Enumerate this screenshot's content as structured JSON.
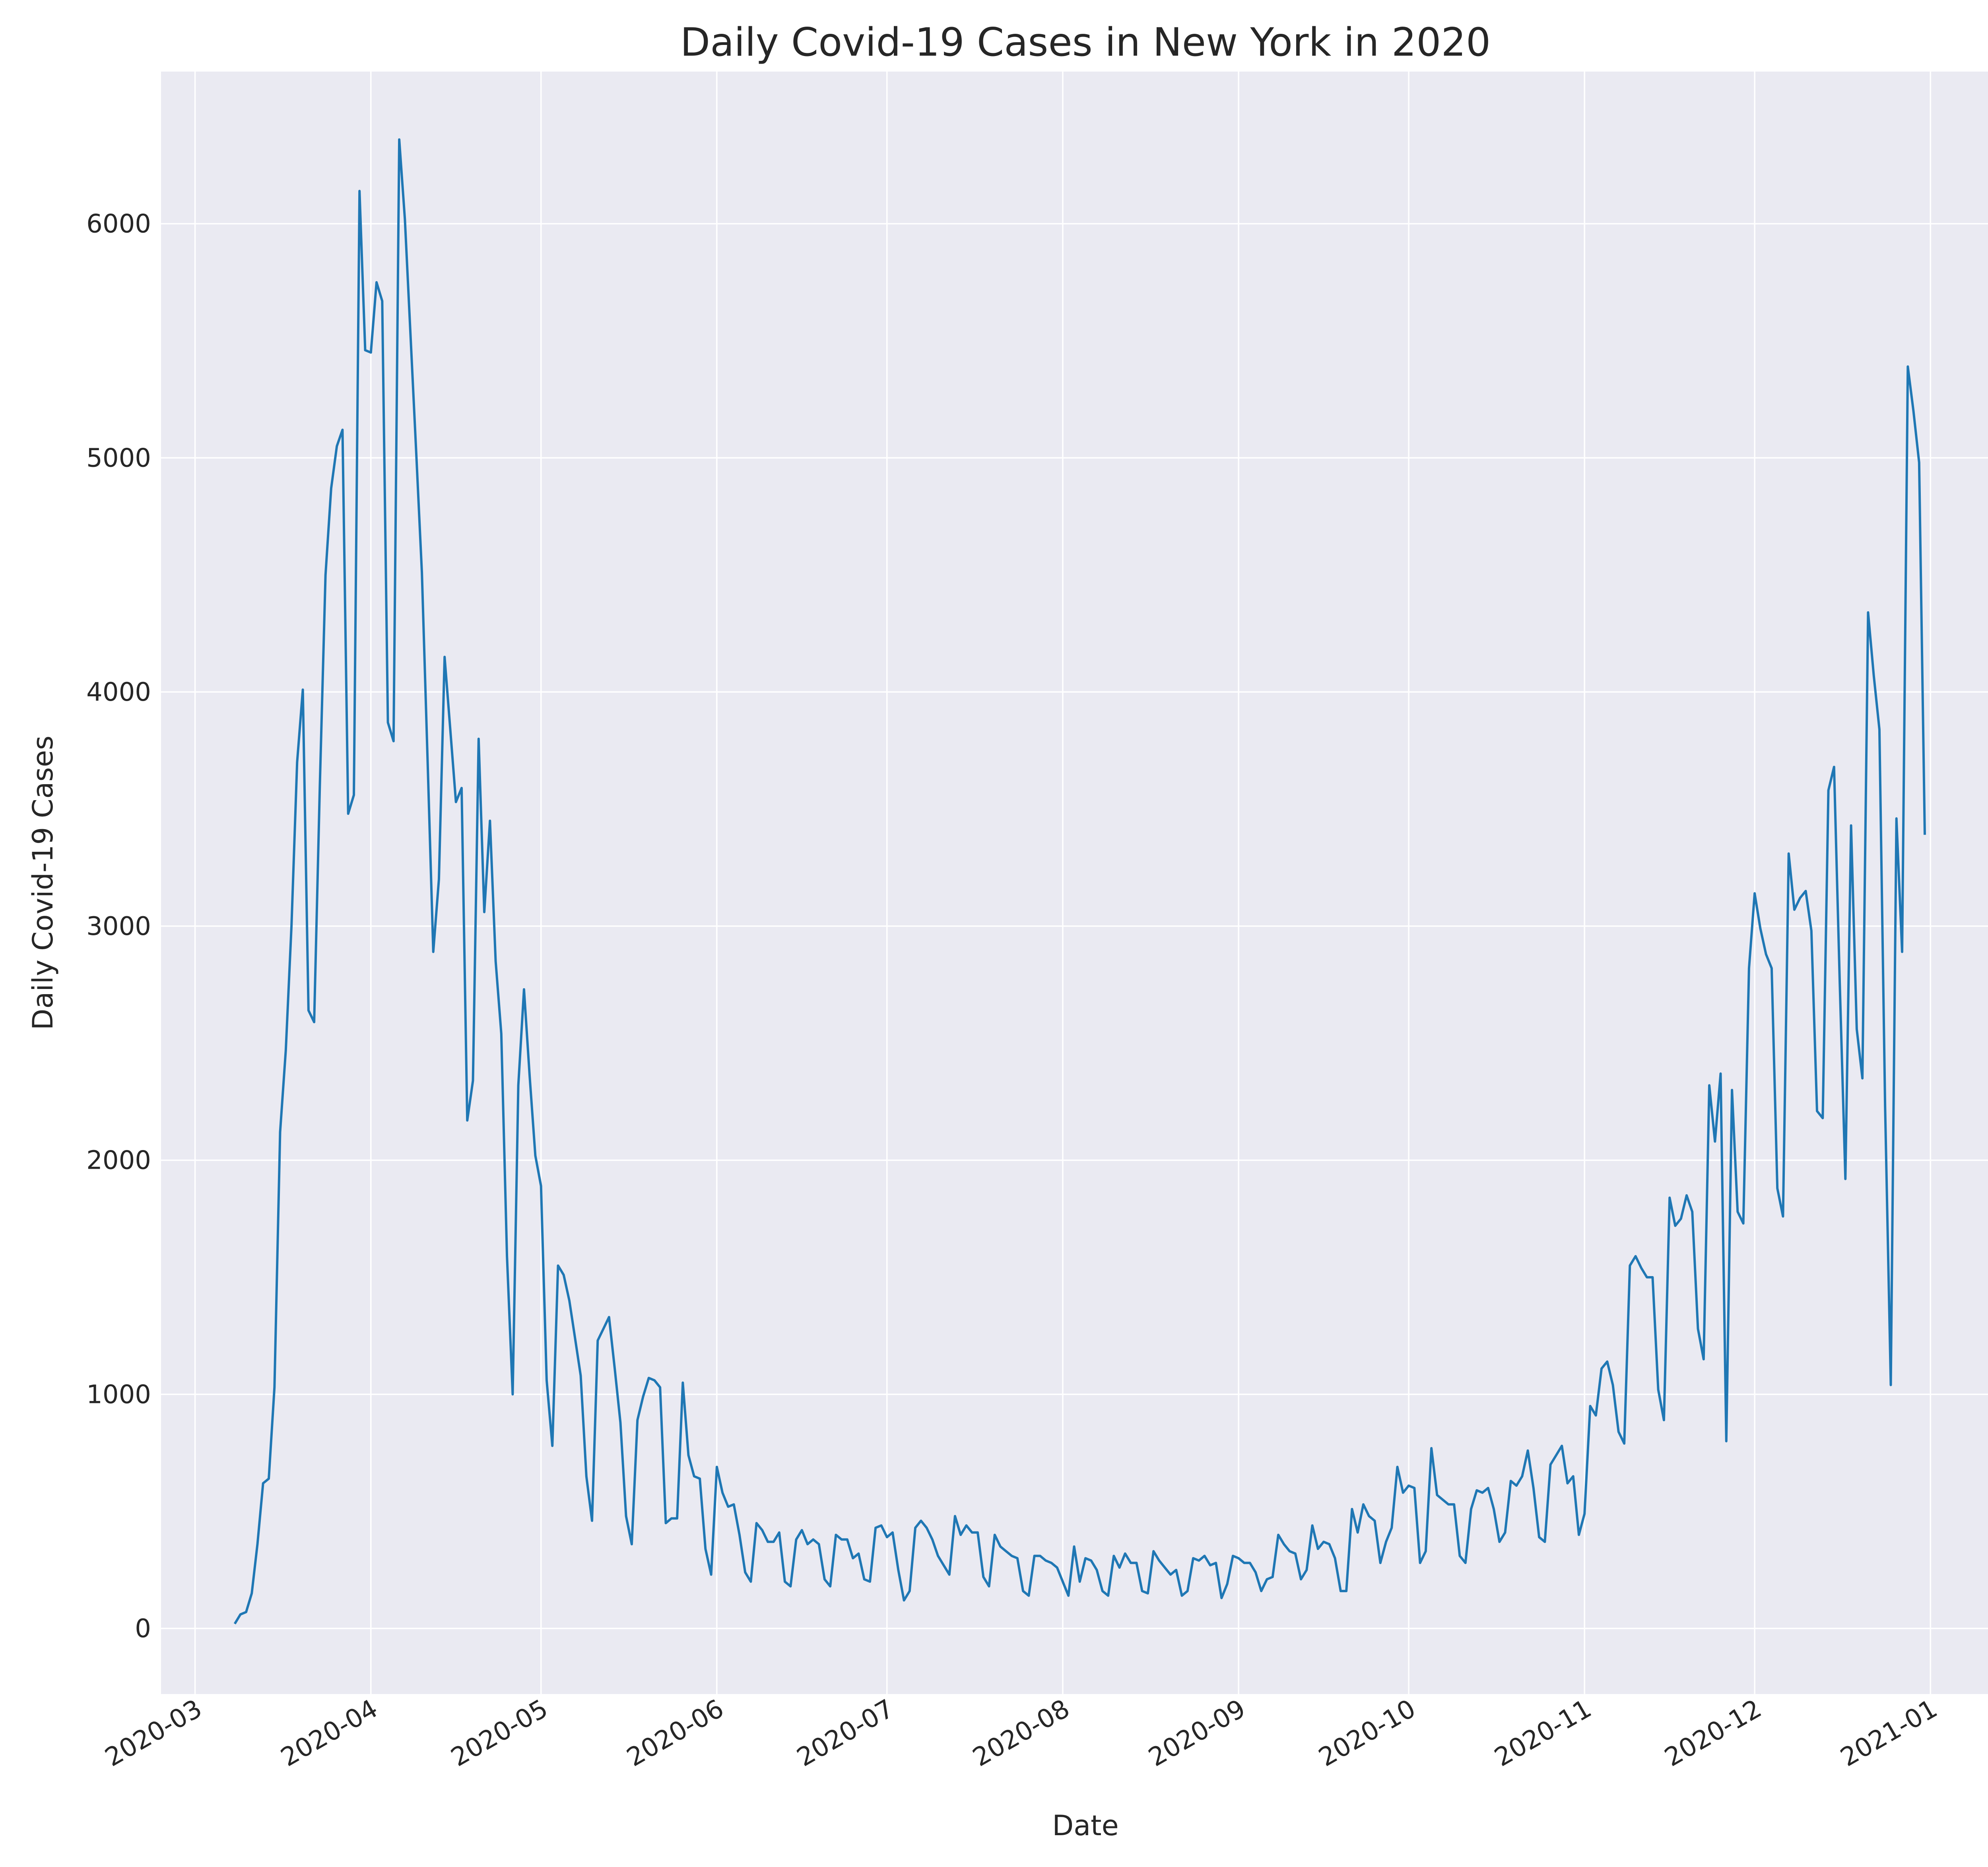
{
  "chart_data": {
    "type": "line",
    "title": "Daily Covid-19 Cases in New York in 2020",
    "xlabel": "Date",
    "ylabel": "Daily Covid-19 Cases",
    "xlim": [
      "2020-02-24",
      "2021-01-15"
    ],
    "ylim": [
      -280,
      6650
    ],
    "grid": true,
    "legend": null,
    "line_color": "#1f77b4",
    "background_color": "#eaeaf2",
    "x_ticks": [
      "2020-03-01",
      "2020-04-01",
      "2020-05-01",
      "2020-06-01",
      "2020-07-01",
      "2020-08-01",
      "2020-09-01",
      "2020-10-01",
      "2020-11-01",
      "2020-12-01",
      "2021-01-01"
    ],
    "x_tick_labels": [
      "2020-03",
      "2020-04",
      "2020-05",
      "2020-06",
      "2020-07",
      "2020-08",
      "2020-09",
      "2020-10",
      "2020-11",
      "2020-12",
      "2021-01"
    ],
    "y_ticks": [
      0,
      1000,
      2000,
      3000,
      4000,
      5000,
      6000
    ],
    "y_tick_labels": [
      "0",
      "1000",
      "2000",
      "3000",
      "4000",
      "5000",
      "6000"
    ],
    "start_date": "2020-03-08",
    "daily_values": [
      20,
      60,
      70,
      150,
      360,
      620,
      640,
      1030,
      2120,
      2470,
      3000,
      3700,
      4010,
      2640,
      2590,
      3600,
      4500,
      4870,
      5050,
      5120,
      3480,
      3560,
      6140,
      5460,
      5450,
      5750,
      5670,
      3870,
      3790,
      6360,
      6020,
      5520,
      5020,
      4510,
      3710,
      2890,
      3200,
      4150,
      3840,
      3530,
      3590,
      2170,
      2340,
      3800,
      3060,
      3450,
      2850,
      2540,
      1590,
      1000,
      2320,
      2730,
      2360,
      2020,
      1890,
      1060,
      780,
      1550,
      1510,
      1400,
      1240,
      1080,
      650,
      460,
      1230,
      1280,
      1330,
      1110,
      880,
      480,
      360,
      890,
      990,
      1070,
      1060,
      1030,
      450,
      470,
      470,
      1050,
      740,
      650,
      640,
      340,
      230,
      690,
      580,
      520,
      530,
      400,
      240,
      200,
      450,
      420,
      370,
      370,
      410,
      200,
      180,
      380,
      420,
      360,
      380,
      360,
      210,
      180,
      400,
      380,
      380,
      300,
      320,
      210,
      200,
      430,
      440,
      390,
      410,
      250,
      120,
      160,
      430,
      460,
      430,
      380,
      310,
      270,
      230,
      480,
      400,
      440,
      410,
      410,
      220,
      180,
      400,
      350,
      330,
      310,
      300,
      160,
      140,
      310,
      310,
      290,
      280,
      260,
      200,
      140,
      350,
      200,
      300,
      290,
      250,
      160,
      140,
      310,
      260,
      320,
      280,
      280,
      160,
      150,
      330,
      290,
      260,
      230,
      250,
      140,
      160,
      300,
      290,
      310,
      270,
      280,
      130,
      190,
      310,
      300,
      280,
      280,
      240,
      160,
      210,
      220,
      400,
      360,
      330,
      320,
      210,
      250,
      440,
      340,
      370,
      360,
      300,
      160,
      160,
      510,
      410,
      530,
      480,
      460,
      280,
      370,
      430,
      690,
      580,
      610,
      600,
      280,
      330,
      770,
      570,
      550,
      530,
      530,
      310,
      280,
      510,
      590,
      580,
      600,
      510,
      370,
      410,
      630,
      610,
      650,
      760,
      600,
      390,
      370,
      700,
      740,
      780,
      620,
      650,
      400,
      490,
      950,
      910,
      1110,
      1140,
      1040,
      840,
      790,
      1550,
      1590,
      1540,
      1500,
      1500,
      1020,
      890,
      1840,
      1720,
      1750,
      1850,
      1780,
      1280,
      1150,
      2320,
      2080,
      2370,
      800,
      2300,
      1780,
      1730,
      2820,
      3140,
      2990,
      2880,
      2820,
      1880,
      1760,
      3310,
      3070,
      3120,
      3150,
      2980,
      2210,
      2180,
      3580,
      3680,
      2760,
      1920,
      3430,
      2560,
      2350,
      4340,
      4070,
      3840,
      2230,
      1040,
      3460,
      2890,
      5390,
      5200,
      4980,
      3390
    ]
  }
}
